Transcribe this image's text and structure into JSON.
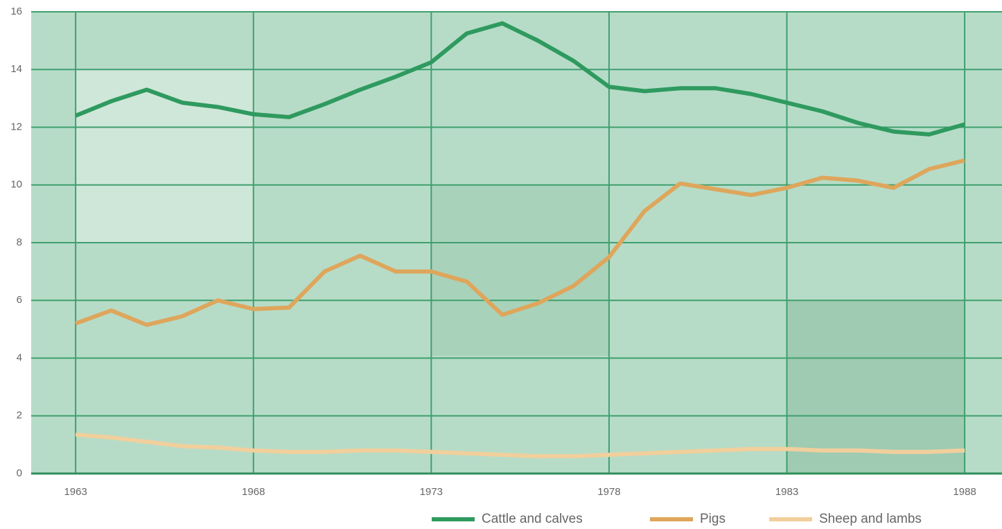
{
  "chart_data": {
    "type": "line",
    "x": [
      1963,
      1964,
      1965,
      1966,
      1967,
      1968,
      1969,
      1970,
      1971,
      1972,
      1973,
      1974,
      1975,
      1976,
      1977,
      1978,
      1979,
      1980,
      1981,
      1982,
      1983,
      1984,
      1985,
      1986,
      1987,
      1988
    ],
    "series": [
      {
        "name": "Cattle and calves",
        "color": "#2f9a5f",
        "values": [
          12.4,
          12.9,
          13.3,
          12.85,
          12.7,
          12.45,
          12.35,
          12.8,
          13.3,
          13.75,
          14.25,
          15.25,
          15.6,
          15.0,
          14.3,
          13.4,
          13.25,
          13.35,
          13.35,
          13.15,
          12.85,
          12.55,
          12.15,
          11.85,
          11.75,
          12.1
        ]
      },
      {
        "name": "Pigs",
        "color": "#dea65c",
        "values": [
          5.2,
          5.65,
          5.15,
          5.45,
          6.0,
          5.7,
          5.75,
          7.0,
          7.55,
          7.0,
          7.0,
          6.65,
          5.5,
          5.9,
          6.5,
          7.5,
          9.1,
          10.05,
          9.85,
          9.65,
          9.9,
          10.25,
          10.15,
          9.9,
          10.55,
          10.85
        ]
      },
      {
        "name": "Sheep and lambs",
        "color": "#f1cf9c",
        "values": [
          1.35,
          1.25,
          1.1,
          0.95,
          0.9,
          0.8,
          0.75,
          0.75,
          0.8,
          0.8,
          0.75,
          0.7,
          0.65,
          0.6,
          0.6,
          0.65,
          0.7,
          0.75,
          0.8,
          0.85,
          0.85,
          0.8,
          0.8,
          0.75,
          0.75,
          0.8
        ]
      }
    ],
    "xlim": [
      1961.75,
      1989.05
    ],
    "xticks": [
      1963,
      1968,
      1973,
      1978,
      1983,
      1988
    ],
    "ylim": [
      0,
      16
    ],
    "yticks": [
      0,
      2,
      4,
      6,
      8,
      10,
      12,
      14,
      16
    ],
    "grid": true
  }
}
